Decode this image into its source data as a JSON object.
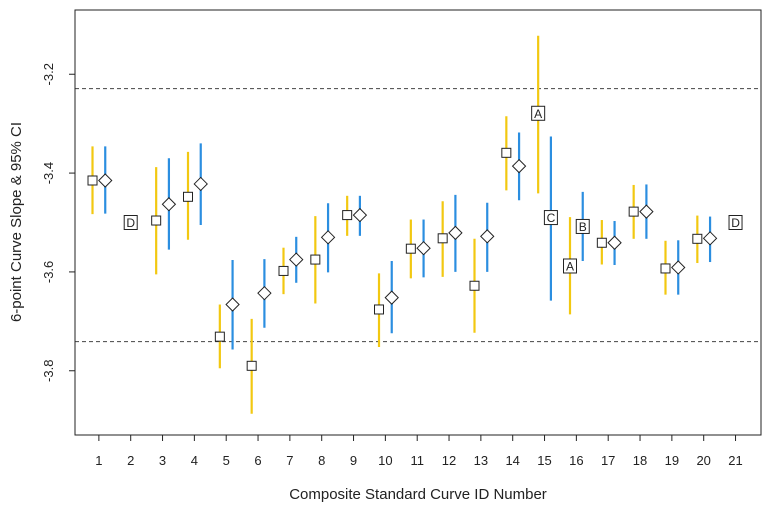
{
  "chart_data": {
    "type": "scatter",
    "xlabel": "Composite Standard Curve ID Number",
    "ylabel": "6-point Curve Slope & 95% CI",
    "ylim": [
      -3.93,
      -3.07
    ],
    "xlim": [
      0.25,
      21.8
    ],
    "yticks": [
      -3.2,
      -3.4,
      -3.6,
      -3.8
    ],
    "yticklabels": [
      "-3.2",
      "-3.4",
      "-3.6",
      "-3.8"
    ],
    "xticks": [
      1,
      2,
      3,
      4,
      5,
      6,
      7,
      8,
      9,
      10,
      11,
      12,
      13,
      14,
      15,
      16,
      17,
      18,
      19,
      20,
      21
    ],
    "xticklabels": [
      "1",
      "2",
      "3",
      "4",
      "5",
      "6",
      "7",
      "8",
      "9",
      "10",
      "11",
      "12",
      "13",
      "14",
      "15",
      "16",
      "17",
      "18",
      "19",
      "20",
      "21"
    ],
    "reference_lines": [
      -3.229,
      -3.741
    ],
    "colors": {
      "square_ci": "#f2c811",
      "diamond_ci": "#2b8ee0",
      "reference": "#444444"
    },
    "series": [
      {
        "marker": "square",
        "points": [
          {
            "x": 0.8,
            "y": -3.415,
            "lo": -3.483,
            "hi": -3.346
          },
          {
            "x": 2.8,
            "y": -3.496,
            "lo": -3.605,
            "hi": -3.388
          },
          {
            "x": 3.8,
            "y": -3.448,
            "lo": -3.535,
            "hi": -3.357
          },
          {
            "x": 4.8,
            "y": -3.731,
            "lo": -3.795,
            "hi": -3.666
          },
          {
            "x": 5.8,
            "y": -3.79,
            "lo": -3.887,
            "hi": -3.695
          },
          {
            "x": 6.8,
            "y": -3.598,
            "lo": -3.645,
            "hi": -3.551
          },
          {
            "x": 7.8,
            "y": -3.575,
            "lo": -3.664,
            "hi": -3.487
          },
          {
            "x": 8.8,
            "y": -3.485,
            "lo": -3.527,
            "hi": -3.446
          },
          {
            "x": 9.8,
            "y": -3.676,
            "lo": -3.752,
            "hi": -3.603
          },
          {
            "x": 10.8,
            "y": -3.553,
            "lo": -3.613,
            "hi": -3.494
          },
          {
            "x": 11.8,
            "y": -3.532,
            "lo": -3.61,
            "hi": -3.457
          },
          {
            "x": 12.8,
            "y": -3.628,
            "lo": -3.723,
            "hi": -3.533
          },
          {
            "x": 13.8,
            "y": -3.359,
            "lo": -3.435,
            "hi": -3.285
          },
          {
            "x": 14.8,
            "y": -3.279,
            "lo": -3.441,
            "hi": -3.122
          },
          {
            "x": 15.8,
            "y": -3.588,
            "lo": -3.686,
            "hi": -3.489
          },
          {
            "x": 16.8,
            "y": -3.541,
            "lo": -3.585,
            "hi": -3.495
          },
          {
            "x": 17.8,
            "y": -3.478,
            "lo": -3.533,
            "hi": -3.424
          },
          {
            "x": 18.8,
            "y": -3.593,
            "lo": -3.646,
            "hi": -3.537
          },
          {
            "x": 19.8,
            "y": -3.533,
            "lo": -3.582,
            "hi": -3.486
          }
        ]
      },
      {
        "marker": "diamond",
        "points": [
          {
            "x": 1.2,
            "y": -3.415,
            "lo": -3.482,
            "hi": -3.346
          },
          {
            "x": 3.2,
            "y": -3.463,
            "lo": -3.555,
            "hi": -3.37
          },
          {
            "x": 4.2,
            "y": -3.422,
            "lo": -3.505,
            "hi": -3.34
          },
          {
            "x": 5.2,
            "y": -3.666,
            "lo": -3.757,
            "hi": -3.576
          },
          {
            "x": 6.2,
            "y": -3.643,
            "lo": -3.713,
            "hi": -3.574
          },
          {
            "x": 7.2,
            "y": -3.575,
            "lo": -3.622,
            "hi": -3.529
          },
          {
            "x": 8.2,
            "y": -3.53,
            "lo": -3.601,
            "hi": -3.461
          },
          {
            "x": 9.2,
            "y": -3.485,
            "lo": -3.527,
            "hi": -3.446
          },
          {
            "x": 10.2,
            "y": -3.652,
            "lo": -3.724,
            "hi": -3.578
          },
          {
            "x": 11.2,
            "y": -3.552,
            "lo": -3.611,
            "hi": -3.494
          },
          {
            "x": 12.2,
            "y": -3.521,
            "lo": -3.6,
            "hi": -3.444
          },
          {
            "x": 13.2,
            "y": -3.528,
            "lo": -3.6,
            "hi": -3.46
          },
          {
            "x": 14.2,
            "y": -3.386,
            "lo": -3.455,
            "hi": -3.318
          },
          {
            "x": 15.2,
            "y": -3.49,
            "lo": -3.658,
            "hi": -3.326
          },
          {
            "x": 16.2,
            "y": -3.508,
            "lo": -3.578,
            "hi": -3.438
          },
          {
            "x": 17.2,
            "y": -3.541,
            "lo": -3.586,
            "hi": -3.497
          },
          {
            "x": 18.2,
            "y": -3.478,
            "lo": -3.533,
            "hi": -3.423
          },
          {
            "x": 19.2,
            "y": -3.591,
            "lo": -3.646,
            "hi": -3.536
          },
          {
            "x": 20.2,
            "y": -3.532,
            "lo": -3.58,
            "hi": -3.488
          }
        ]
      }
    ],
    "letter_labels": [
      {
        "x": 2.0,
        "y": -3.5,
        "text": "D"
      },
      {
        "x": 21.0,
        "y": -3.5,
        "text": "D"
      },
      {
        "x": 14.8,
        "y": -3.279,
        "text": "A"
      },
      {
        "x": 15.2,
        "y": -3.49,
        "text": "C"
      },
      {
        "x": 15.8,
        "y": -3.588,
        "text": "A"
      },
      {
        "x": 16.2,
        "y": -3.508,
        "text": "B"
      }
    ]
  }
}
